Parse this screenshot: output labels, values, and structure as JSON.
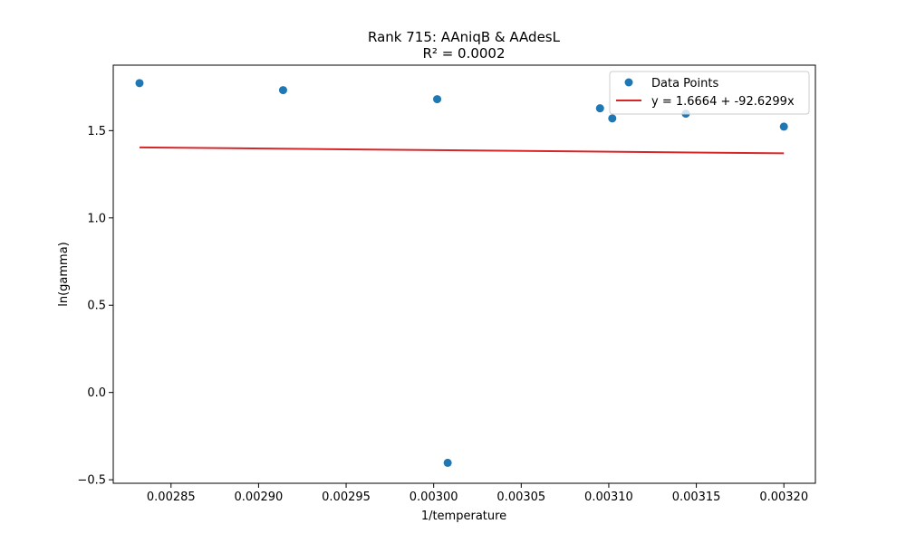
{
  "chart_data": {
    "type": "scatter",
    "title": "Rank 715: AAniqB & AAdesL",
    "subtitle": "R² = 0.0002",
    "xlabel": "1/temperature",
    "ylabel": "ln(gamma)",
    "xlim": [
      0.002817,
      0.003218
    ],
    "ylim": [
      -0.52,
      1.875
    ],
    "xticks": [
      0.00285,
      0.0029,
      0.00295,
      0.003,
      0.00305,
      0.0031,
      0.00315,
      0.0032
    ],
    "xtick_labels": [
      "0.00285",
      "0.00290",
      "0.00295",
      "0.00300",
      "0.00305",
      "0.00310",
      "0.00315",
      "0.00320"
    ],
    "yticks": [
      -0.5,
      0.0,
      0.5,
      1.0,
      1.5
    ],
    "ytick_labels": [
      "−0.5",
      "0.0",
      "0.5",
      "1.0",
      "1.5"
    ],
    "grid": false,
    "legend_position": "top-right",
    "series": [
      {
        "name": "Data Points",
        "kind": "scatter",
        "color": "#1f77b4",
        "points": [
          {
            "x": 0.002832,
            "y": 1.772
          },
          {
            "x": 0.002914,
            "y": 1.732
          },
          {
            "x": 0.003002,
            "y": 1.68
          },
          {
            "x": 0.003008,
            "y": -0.403
          },
          {
            "x": 0.003095,
            "y": 1.628
          },
          {
            "x": 0.003102,
            "y": 1.57
          },
          {
            "x": 0.003144,
            "y": 1.597
          },
          {
            "x": 0.0032,
            "y": 1.523
          }
        ]
      },
      {
        "name": "y = 1.6664 + -92.6299x",
        "kind": "line",
        "color": "#d62728",
        "intercept": 1.6664,
        "slope": -92.6299
      }
    ]
  }
}
